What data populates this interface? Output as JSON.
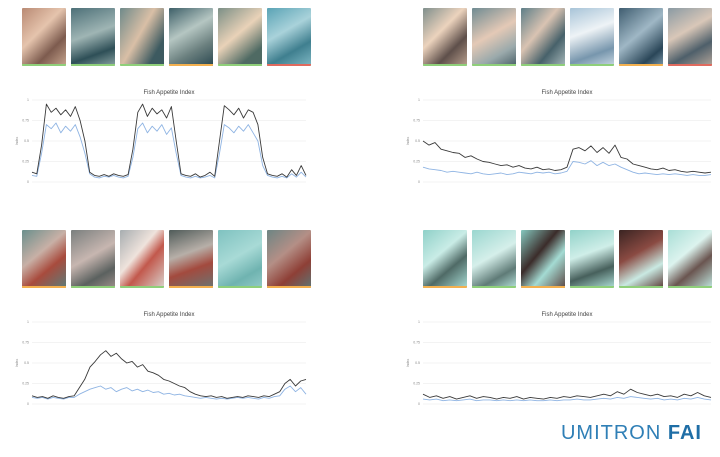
{
  "brand": {
    "name": "UMITRON",
    "product": "FAI"
  },
  "colors": {
    "dark_line": "#3a3a3a",
    "light_line": "#8fb4e3",
    "grid": "#e8e8e8",
    "axis_text": "#8a8a8a"
  },
  "panels": [
    {
      "thumbs": [
        {
          "bg": "linear-gradient(135deg,#b98a74,#e5c4ad 40%,#7d5b4e 70%,#c7a58e)",
          "bar": "#8fcf7a"
        },
        {
          "bg": "linear-gradient(160deg,#4d7078,#9fb5b4 45%,#2e4f57 75%,#8aa3a2)",
          "bar": "#8fcf7a"
        },
        {
          "bg": "linear-gradient(120deg,#6f8a8a,#d9bfa6 45%,#3d5a60 80%)",
          "bar": "#8fcf7a"
        },
        {
          "bg": "linear-gradient(150deg,#3d5f68,#b5c6c2 40%,#6a7f7e 70%,#2b4850)",
          "bar": "#f3b04f"
        },
        {
          "bg": "linear-gradient(140deg,#7b8f86,#e9d2b8 45%,#4f6a63 80%)",
          "bar": "#8fcf7a"
        },
        {
          "bg": "linear-gradient(150deg,#5aa3b5,#a9d2da 40%,#3f7f8f 70%,#7fb8c4)",
          "bar": "#e06a5e"
        }
      ],
      "chart_data": {
        "type": "line",
        "title": "Fish Appetite Index",
        "ylabel": "Index",
        "ylim": [
          0,
          1
        ],
        "yticks": [
          "0",
          "0.25",
          "0.5",
          "0.75",
          "1"
        ],
        "series": [
          {
            "values": [
              0.12,
              0.1,
              0.45,
              0.95,
              0.85,
              0.9,
              0.82,
              0.88,
              0.8,
              0.92,
              0.75,
              0.5,
              0.12,
              0.08,
              0.07,
              0.09,
              0.07,
              0.1,
              0.08,
              0.07,
              0.09,
              0.4,
              0.85,
              0.95,
              0.8,
              0.9,
              0.83,
              0.88,
              0.78,
              0.92,
              0.5,
              0.1,
              0.08,
              0.07,
              0.1,
              0.06,
              0.08,
              0.12,
              0.07,
              0.5,
              0.93,
              0.88,
              0.82,
              0.9,
              0.78,
              0.88,
              0.85,
              0.7,
              0.3,
              0.1,
              0.08,
              0.07,
              0.1,
              0.06,
              0.15,
              0.08,
              0.2,
              0.08
            ]
          },
          {
            "values": [
              0.08,
              0.07,
              0.35,
              0.7,
              0.65,
              0.72,
              0.6,
              0.68,
              0.62,
              0.7,
              0.55,
              0.35,
              0.1,
              0.06,
              0.05,
              0.07,
              0.06,
              0.08,
              0.06,
              0.05,
              0.07,
              0.3,
              0.65,
              0.72,
              0.6,
              0.68,
              0.62,
              0.7,
              0.58,
              0.66,
              0.35,
              0.08,
              0.06,
              0.05,
              0.07,
              0.05,
              0.06,
              0.08,
              0.05,
              0.35,
              0.7,
              0.66,
              0.6,
              0.68,
              0.62,
              0.7,
              0.6,
              0.5,
              0.2,
              0.08,
              0.06,
              0.05,
              0.07,
              0.05,
              0.1,
              0.06,
              0.12,
              0.06
            ]
          }
        ]
      }
    },
    {
      "thumbs": [
        {
          "bg": "linear-gradient(135deg,#7f8f8c,#ecd3bd 40%,#5e4f4a 70%,#b9a08e)",
          "bar": "#8fcf7a"
        },
        {
          "bg": "linear-gradient(150deg,#6f8b92,#e4c9b6 45%,#9aa9ab 75%,#4a6068)",
          "bar": "#8fcf7a"
        },
        {
          "bg": "linear-gradient(130deg,#5e7f88,#d9c3b2 40%,#47616a 70%,#a7b8ba)",
          "bar": "#8fcf7a"
        },
        {
          "bg": "linear-gradient(160deg,#a8c4d8,#eef3f6 40%,#7796ad 75%,#c9d8e3)",
          "bar": "#8fcf7a"
        },
        {
          "bg": "linear-gradient(140deg,#3f5d70,#9fb7c5 45%,#2a4658 80%,#7b97a8)",
          "bar": "#f3b04f"
        },
        {
          "bg": "linear-gradient(150deg,#8a9aa3,#d9c7b8 40%,#4e5f6a 70%,#b3a59a)",
          "bar": "#e06a5e"
        }
      ],
      "chart_data": {
        "type": "line",
        "title": "Fish Appetite Index",
        "ylabel": "Index",
        "ylim": [
          0,
          1
        ],
        "yticks": [
          "0",
          "0.25",
          "0.5",
          "0.75",
          "1"
        ],
        "series": [
          {
            "values": [
              0.5,
              0.45,
              0.48,
              0.4,
              0.38,
              0.36,
              0.35,
              0.3,
              0.32,
              0.28,
              0.25,
              0.24,
              0.22,
              0.2,
              0.21,
              0.18,
              0.2,
              0.17,
              0.16,
              0.18,
              0.15,
              0.16,
              0.14,
              0.15,
              0.18,
              0.4,
              0.42,
              0.38,
              0.44,
              0.36,
              0.42,
              0.35,
              0.45,
              0.3,
              0.28,
              0.22,
              0.2,
              0.18,
              0.16,
              0.15,
              0.17,
              0.14,
              0.15,
              0.13,
              0.12,
              0.13,
              0.12,
              0.11,
              0.12
            ]
          },
          {
            "values": [
              0.18,
              0.16,
              0.15,
              0.14,
              0.12,
              0.13,
              0.12,
              0.11,
              0.1,
              0.12,
              0.1,
              0.09,
              0.1,
              0.11,
              0.09,
              0.1,
              0.12,
              0.11,
              0.1,
              0.12,
              0.11,
              0.12,
              0.1,
              0.11,
              0.13,
              0.25,
              0.24,
              0.22,
              0.26,
              0.2,
              0.24,
              0.2,
              0.22,
              0.18,
              0.15,
              0.12,
              0.1,
              0.11,
              0.1,
              0.09,
              0.1,
              0.09,
              0.1,
              0.09,
              0.08,
              0.09,
              0.08,
              0.08,
              0.09
            ]
          }
        ]
      }
    },
    {
      "thumbs": [
        {
          "bg": "linear-gradient(140deg,#6a8f8c,#c8b0a6 40%,#a84b3d 65%,#5d7c79)",
          "bar": "#f3b04f"
        },
        {
          "bg": "linear-gradient(150deg,#7a7f7e,#c7b6b0 45%,#5b615f 75%,#9c8f8a)",
          "bar": "#8fcf7a"
        },
        {
          "bg": "linear-gradient(130deg,#a7adb0,#efe3dc 40%,#c2584c 60%,#d9d2cd)",
          "bar": "#8fcf7a"
        },
        {
          "bg": "linear-gradient(160deg,#4f5b59,#b7afa8 40%,#a34a3e 65%,#6b7472)",
          "bar": "#f3b04f"
        },
        {
          "bg": "linear-gradient(150deg,#7fc2c0,#a8dad6 45%,#6fb3b0 75%,#93cbc8)",
          "bar": "#8fcf7a"
        },
        {
          "bg": "linear-gradient(140deg,#6d8584,#b48f86 40%,#8e3f36 70%,#5f7473)",
          "bar": "#f3b04f"
        }
      ],
      "chart_data": {
        "type": "line",
        "title": "Fish Appetite Index",
        "ylabel": "Index",
        "ylim": [
          0,
          1
        ],
        "yticks": [
          "0",
          "0.25",
          "0.5",
          "0.75",
          "1"
        ],
        "series": [
          {
            "values": [
              0.1,
              0.08,
              0.09,
              0.07,
              0.1,
              0.08,
              0.07,
              0.09,
              0.1,
              0.2,
              0.3,
              0.45,
              0.52,
              0.6,
              0.65,
              0.58,
              0.62,
              0.55,
              0.5,
              0.52,
              0.45,
              0.48,
              0.4,
              0.38,
              0.35,
              0.3,
              0.28,
              0.25,
              0.22,
              0.2,
              0.15,
              0.12,
              0.1,
              0.09,
              0.1,
              0.08,
              0.09,
              0.07,
              0.08,
              0.09,
              0.08,
              0.1,
              0.09,
              0.08,
              0.1,
              0.09,
              0.12,
              0.15,
              0.25,
              0.3,
              0.22,
              0.28,
              0.3
            ]
          },
          {
            "values": [
              0.08,
              0.07,
              0.08,
              0.06,
              0.08,
              0.07,
              0.06,
              0.08,
              0.08,
              0.12,
              0.15,
              0.18,
              0.2,
              0.22,
              0.18,
              0.2,
              0.15,
              0.18,
              0.2,
              0.16,
              0.18,
              0.15,
              0.17,
              0.14,
              0.15,
              0.12,
              0.13,
              0.11,
              0.12,
              0.1,
              0.09,
              0.08,
              0.07,
              0.08,
              0.07,
              0.06,
              0.07,
              0.06,
              0.07,
              0.08,
              0.07,
              0.08,
              0.07,
              0.06,
              0.08,
              0.07,
              0.09,
              0.1,
              0.18,
              0.22,
              0.15,
              0.2,
              0.12
            ]
          }
        ]
      }
    },
    {
      "thumbs": [
        {
          "bg": "linear-gradient(140deg,#8fd0c8,#c9ece6 40%,#4f6a66 65%,#a8ddd5)",
          "bar": "#f3b04f"
        },
        {
          "bg": "linear-gradient(150deg,#9ad6cf,#d5efea 45%,#5f7b77 75%,#b5e2db)",
          "bar": "#8fcf7a"
        },
        {
          "bg": "linear-gradient(130deg,#86c8bf,#3b2c2a 40%,#a4dbd3 65%,#5c4744)",
          "bar": "#f3b04f"
        },
        {
          "bg": "linear-gradient(160deg,#92d2c9,#cfeee8 40%,#47605c 70%,#aee0d8)",
          "bar": "#8fcf7a"
        },
        {
          "bg": "linear-gradient(150deg,#3a2422,#8a4a42 40%,#c9e9e2 70%,#5b3b36)",
          "bar": "#8fcf7a"
        },
        {
          "bg": "linear-gradient(140deg,#a9ded6,#dcf3ee 40%,#6a5550 65%,#bfe6df)",
          "bar": "#8fcf7a"
        }
      ],
      "chart_data": {
        "type": "line",
        "title": "Fish Appetite Index",
        "ylabel": "Index",
        "ylim": [
          0,
          1
        ],
        "yticks": [
          "0",
          "0.25",
          "0.5",
          "0.75",
          "1"
        ],
        "series": [
          {
            "values": [
              0.12,
              0.08,
              0.1,
              0.07,
              0.09,
              0.06,
              0.08,
              0.1,
              0.07,
              0.09,
              0.08,
              0.06,
              0.08,
              0.07,
              0.09,
              0.06,
              0.08,
              0.07,
              0.06,
              0.08,
              0.07,
              0.09,
              0.08,
              0.1,
              0.09,
              0.08,
              0.1,
              0.12,
              0.1,
              0.15,
              0.12,
              0.18,
              0.14,
              0.12,
              0.1,
              0.12,
              0.09,
              0.1,
              0.08,
              0.12,
              0.1,
              0.14,
              0.1,
              0.08
            ]
          },
          {
            "values": [
              0.06,
              0.05,
              0.06,
              0.04,
              0.05,
              0.04,
              0.05,
              0.06,
              0.04,
              0.05,
              0.05,
              0.04,
              0.05,
              0.04,
              0.05,
              0.04,
              0.05,
              0.04,
              0.04,
              0.05,
              0.04,
              0.05,
              0.05,
              0.06,
              0.05,
              0.05,
              0.06,
              0.07,
              0.06,
              0.08,
              0.07,
              0.09,
              0.08,
              0.07,
              0.06,
              0.07,
              0.05,
              0.06,
              0.05,
              0.07,
              0.06,
              0.08,
              0.06,
              0.05
            ]
          }
        ]
      }
    }
  ]
}
